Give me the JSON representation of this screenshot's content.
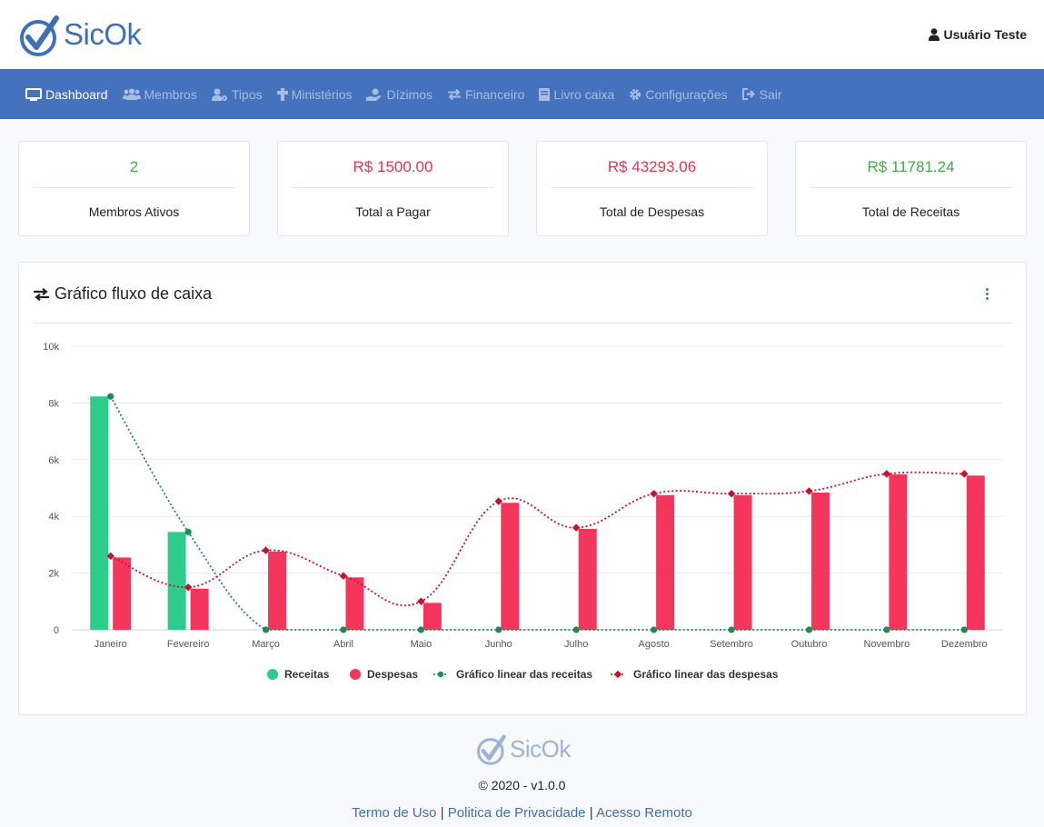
{
  "brand": {
    "name": "SicOk",
    "primary_color": "#4472bf"
  },
  "user": {
    "name": "Usuário Teste",
    "icon": "user-icon"
  },
  "nav": {
    "items": [
      {
        "label": "Dashboard",
        "icon": "desktop-icon",
        "active": true
      },
      {
        "label": "Membros",
        "icon": "users-icon"
      },
      {
        "label": "Tipos",
        "icon": "user-cog-icon"
      },
      {
        "label": "Ministérios",
        "icon": "cross-icon"
      },
      {
        "label": "Dízimos",
        "icon": "hand-coin-icon"
      },
      {
        "label": "Financeiro",
        "icon": "exchange-icon"
      },
      {
        "label": "Livro caixa",
        "icon": "book-icon"
      },
      {
        "label": "Configurações",
        "icon": "gear-icon"
      },
      {
        "label": "Sair",
        "icon": "sign-out-icon"
      }
    ]
  },
  "cards": [
    {
      "value": "2",
      "label": "Membros Ativos",
      "color": "#3fae49"
    },
    {
      "value": "R$ 1500.00",
      "label": "Total a Pagar",
      "color": "#e0354f"
    },
    {
      "value": "R$ 43293.06",
      "label": "Total de Despesas",
      "color": "#e0354f"
    },
    {
      "value": "R$ 11781.24",
      "label": "Total de Receitas",
      "color": "#3fae49"
    }
  ],
  "chart_card": {
    "title": "Gráfico fluxo de caixa"
  },
  "chart_data": {
    "type": "bar",
    "categories": [
      "Janeiro",
      "Fevereiro",
      "Março",
      "Abril",
      "Maio",
      "Junho",
      "Julho",
      "Agosto",
      "Setembro",
      "Outubro",
      "Novembro",
      "Dezembro"
    ],
    "ylim": [
      0,
      10000
    ],
    "y_ticks": [
      0,
      2000,
      4000,
      6000,
      8000,
      10000
    ],
    "y_tick_labels": [
      "0",
      "2k",
      "4k",
      "6k",
      "8k",
      "10k"
    ],
    "grid": true,
    "legend_position": "bottom",
    "series": [
      {
        "name": "Receitas",
        "type": "bar",
        "color": "#2ecc8a",
        "values": [
          8230,
          3450,
          0,
          0,
          0,
          0,
          0,
          0,
          0,
          0,
          0,
          0
        ]
      },
      {
        "name": "Despesas",
        "type": "bar",
        "color": "#f5365c",
        "values": [
          2550,
          1450,
          2760,
          1850,
          950,
          4480,
          3560,
          4750,
          4750,
          4840,
          5480,
          5440
        ]
      },
      {
        "name": "Gráfico linear das receitas",
        "type": "line",
        "color": "#1e8a55",
        "values": [
          8230,
          3450,
          0,
          0,
          0,
          0,
          0,
          0,
          0,
          0,
          0,
          0
        ]
      },
      {
        "name": "Gráfico linear das despesas",
        "type": "line",
        "color": "#c8102e",
        "values": [
          2600,
          1500,
          2800,
          1900,
          1000,
          4530,
          3600,
          4800,
          4800,
          4890,
          5500,
          5500
        ]
      }
    ]
  },
  "footer": {
    "brand": "SicOk",
    "copyright": "© 2020 - v1.0.0",
    "links": [
      "Termo de Uso",
      "Politica de Privacidade",
      "Acesso Remoto"
    ],
    "separator": "|"
  }
}
